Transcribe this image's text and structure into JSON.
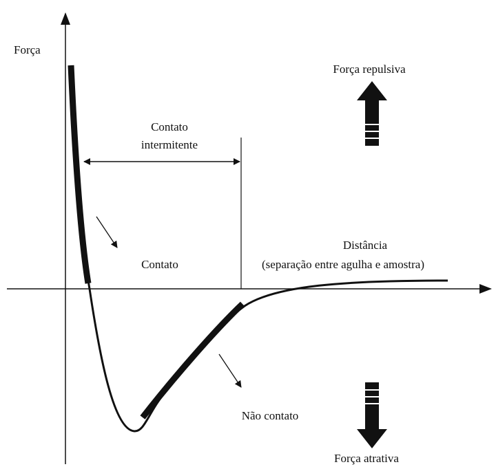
{
  "y_axis_label": "Força",
  "repulsive_label": "Força repulsiva",
  "intermittent_label": [
    "Contato",
    "intermitente"
  ],
  "contact_label": "Contato",
  "x_axis_label": [
    "Distância",
    "(separação entre agulha e amostra)"
  ],
  "noncontact_label": "Não contato",
  "attractive_label": "Força atrativa"
}
